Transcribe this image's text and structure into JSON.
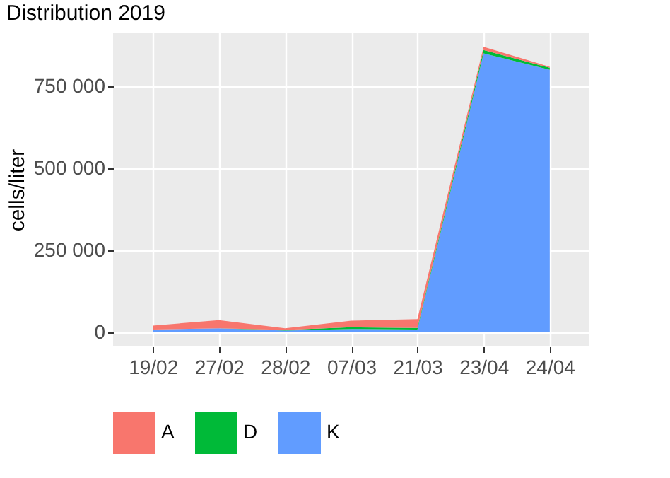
{
  "chart_data": {
    "type": "area",
    "title": "Distribution 2019",
    "ylabel": "cells/liter",
    "stacked": true,
    "categories": [
      "19/02",
      "27/02",
      "28/02",
      "07/03",
      "21/03",
      "23/04",
      "24/04"
    ],
    "series": [
      {
        "name": "K",
        "color": "#619cff",
        "values": [
          8000,
          12000,
          5000,
          10000,
          8000,
          850000,
          800000
        ]
      },
      {
        "name": "D",
        "color": "#00ba38",
        "values": [
          0,
          0,
          2000,
          5000,
          5000,
          10000,
          6000
        ]
      },
      {
        "name": "A",
        "color": "#f8766d",
        "values": [
          12000,
          25000,
          5000,
          20000,
          27000,
          10000,
          3000
        ]
      }
    ],
    "ylim": [
      -43500,
      913500
    ],
    "yticks": [
      {
        "value": 0,
        "label": "0"
      },
      {
        "value": 250000,
        "label": "250 000"
      },
      {
        "value": 500000,
        "label": "500 000"
      },
      {
        "value": 750000,
        "label": "750 000"
      }
    ],
    "grid": true,
    "legend": "bottom"
  }
}
